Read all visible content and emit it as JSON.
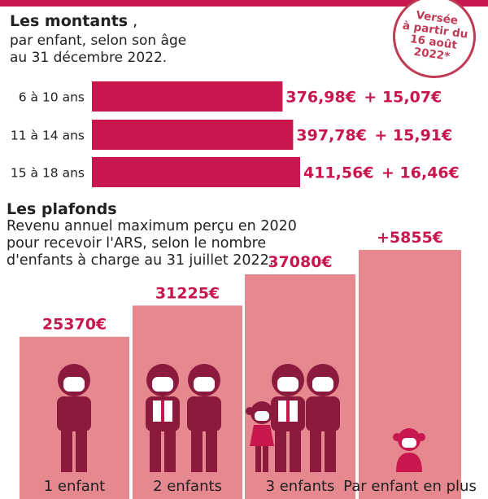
{
  "stamp": {
    "lines": [
      "Versée",
      "à partir du",
      "16 août",
      "2022*"
    ]
  },
  "montants": {
    "title": "Les montants",
    "title_suffix": " ,",
    "subtitle_lines": [
      "par enfant, selon son âge",
      "au 31 décembre 2022."
    ]
  },
  "plafonds": {
    "title": "Les plafonds",
    "subtitle_lines": [
      "Revenu annuel maximum perçu en 2020",
      "pour recevoir l'ARS, selon le nombre",
      "d'enfants à charge au 31 juillet 2022."
    ]
  },
  "colors": {
    "accent": "#c8174d",
    "bar_light": "#e6888f",
    "figure_dark": "#8b1a3c",
    "figure_face": "#ffffff",
    "top_bar": "#c8174d"
  },
  "chart_data": [
    {
      "type": "bar",
      "orientation": "horizontal",
      "categories": [
        "6 à 10 ans",
        "11 à 14 ans",
        "15 à 18 ans"
      ],
      "values": [
        376.98,
        397.78,
        411.56
      ],
      "value_labels": [
        "376,98€",
        "397,78€",
        "411,56€"
      ],
      "increase_labels": [
        "+ 15,07€",
        "+ 15,91€",
        "+ 16,46€"
      ],
      "xlim": [
        0,
        411.56
      ]
    },
    {
      "type": "bar",
      "orientation": "vertical",
      "categories": [
        "1 enfant",
        "2 enfants",
        "3 enfants",
        "Par enfant en plus"
      ],
      "values": [
        25370,
        31225,
        37080,
        5855
      ],
      "value_labels": [
        "25370€",
        "31225€",
        "37080€",
        "+5855€"
      ],
      "figures": [
        [
          "adult"
        ],
        [
          "adult",
          "adult"
        ],
        [
          "girl",
          "adult",
          "adult"
        ],
        [
          "toddler"
        ]
      ]
    }
  ]
}
